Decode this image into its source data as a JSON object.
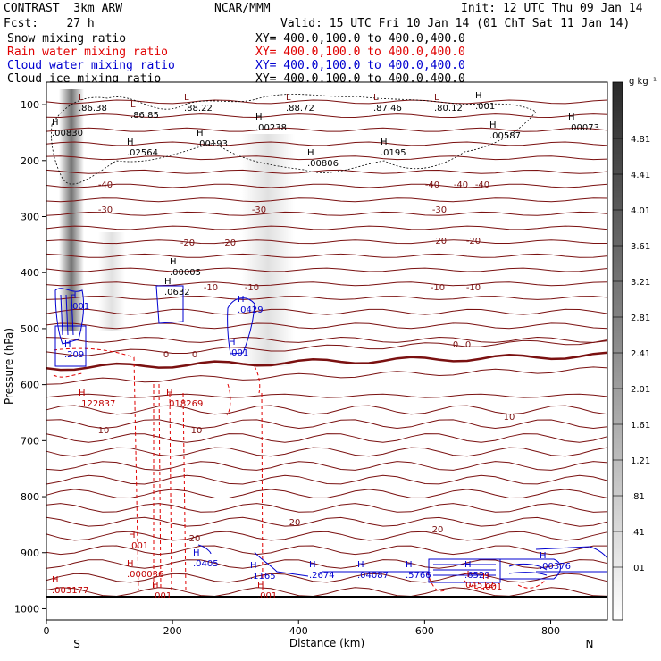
{
  "header": {
    "model": "CONTRAST  3km ARW",
    "org": "NCAR/MMM",
    "init": "Init: 12 UTC Thu 09 Jan 14",
    "fcst": "Fcst:    27 h",
    "valid": "Valid: 15 UTC Fri 10 Jan 14 (01 ChT Sat 11 Jan 14)",
    "fields": [
      {
        "name": "Snow mixing ratio",
        "xy": "XY= 400.0,100.0 to 400.0,400.0",
        "color": "#000000"
      },
      {
        "name": "Rain water mixing ratio",
        "xy": "XY= 400.0,100.0 to 400.0,400.0",
        "color": "#e00000"
      },
      {
        "name": "Cloud water mixing ratio",
        "xy": "XY= 400.0,100.0 to 400.0,400.0",
        "color": "#0000d0"
      },
      {
        "name": "Cloud ice mixing ratio",
        "xy": "XY= 400.0,100.0 to 400.0,400.0",
        "color": "#000000"
      }
    ]
  },
  "chart_data": {
    "type": "cross-section",
    "ylabel": "Pressure (hPa)",
    "xlabel": "Distance (km)",
    "xlim": [
      0,
      890
    ],
    "ylim": [
      1020,
      60
    ],
    "x_ticks": [
      0,
      200,
      400,
      600,
      800
    ],
    "y_ticks": [
      100,
      200,
      300,
      400,
      500,
      600,
      700,
      800,
      900,
      1000
    ],
    "endpoints": {
      "left": "S",
      "right": "N"
    },
    "colorbar": {
      "units": "g kg⁻¹",
      "labels": [
        "4.81",
        "4.41",
        "4.01",
        "3.61",
        "3.21",
        "2.81",
        "2.41",
        "2.01",
        "1.61",
        "1.21",
        ".81",
        ".41",
        ".01"
      ]
    },
    "temperature_isotherms": [
      {
        "label": "-40",
        "pressure": 210
      },
      {
        "label": "-30",
        "pressure": 250
      },
      {
        "label": "-20",
        "pressure": 315
      },
      {
        "label": "-10",
        "pressure": 450
      },
      {
        "label": "0",
        "pressure": 568
      },
      {
        "label": "10",
        "pressure": 710
      },
      {
        "label": "20",
        "pressure": 870
      }
    ],
    "isotherm_labels": [
      "-40",
      "-40",
      "-40",
      "-40",
      "-30",
      "-30",
      "-30",
      "-20",
      "-20",
      "-20",
      "-20",
      "-10",
      "-10",
      "-10",
      "-10",
      "0",
      "0",
      "0",
      "0",
      "10",
      "10",
      "10",
      "20",
      "20",
      "20"
    ],
    "annotations": {
      "lows_top": [
        ".86.38",
        ".86.85",
        ".88.22",
        ".88.72",
        ".87.46",
        ".80.12"
      ],
      "ice_highs": [
        ".00830",
        ".02564",
        ".00193",
        ".00238",
        ".00806",
        ".0195",
        ".00587",
        ".00073",
        ".001"
      ],
      "snow_highs": [
        ".00005",
        ".0632"
      ],
      "cloud_water": [
        ".001",
        ".209",
        ".0429",
        ".001",
        ".0405",
        ".1165",
        ".2674",
        ".04087",
        ".5766",
        ".6529",
        ".00376"
      ],
      "rain_water": [
        ".122837",
        ".018269",
        ".001",
        ".000036",
        ".001",
        ".003177",
        ".001",
        ".001",
        ".04512"
      ],
      "rain_labels_lowhigh": [
        "H",
        "H",
        "L",
        "L"
      ]
    }
  }
}
